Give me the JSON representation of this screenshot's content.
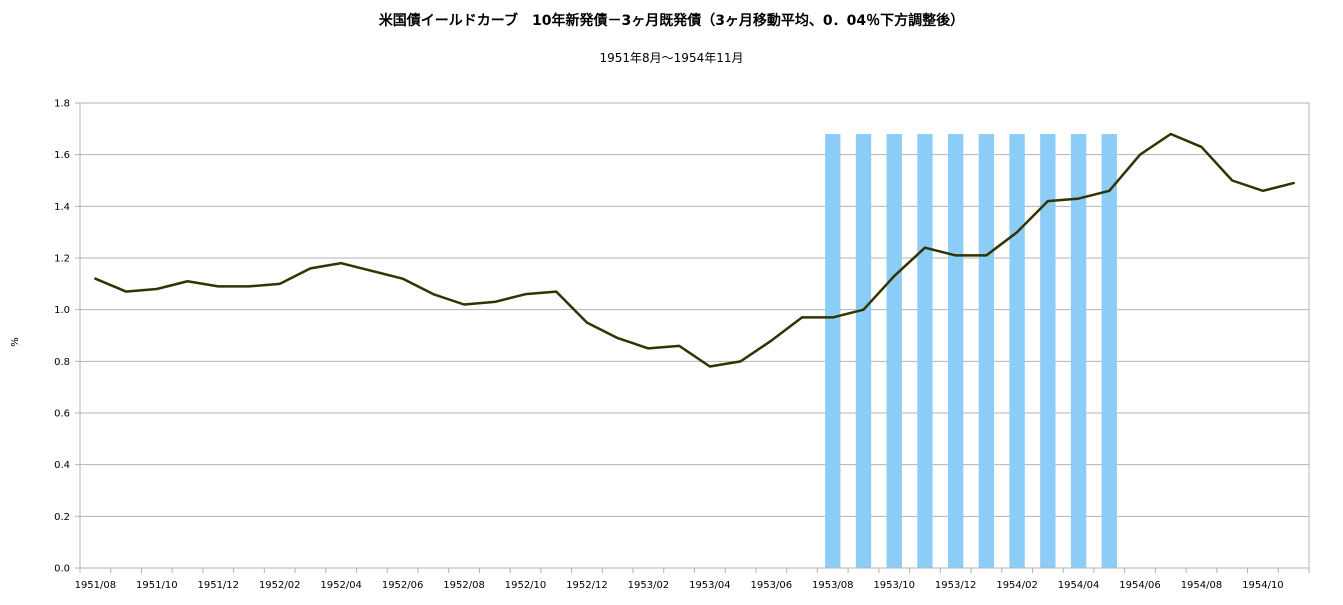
{
  "chart_data": {
    "type": "line",
    "title": "米国債イールドカーブ　10年新発債－3ヶ月既発債（3ヶ月移動平均、0．04％下方調整後）",
    "subtitle": "1951年8月～1954年11月",
    "ylabel": "%",
    "xlabel": "",
    "ylim": [
      0,
      1.8
    ],
    "yticks": [
      "0.0",
      "0.2",
      "0.4",
      "0.6",
      "0.8",
      "1.0",
      "1.2",
      "1.4",
      "1.6",
      "1.8"
    ],
    "grid": true,
    "categories": [
      "1951/08",
      "1951/09",
      "1951/10",
      "1951/11",
      "1951/12",
      "1952/01",
      "1952/02",
      "1952/03",
      "1952/04",
      "1952/05",
      "1952/06",
      "1952/07",
      "1952/08",
      "1952/09",
      "1952/10",
      "1952/11",
      "1952/12",
      "1953/01",
      "1953/02",
      "1953/03",
      "1953/04",
      "1953/05",
      "1953/06",
      "1953/07",
      "1953/08",
      "1953/09",
      "1953/10",
      "1953/11",
      "1953/12",
      "1954/01",
      "1954/02",
      "1954/03",
      "1954/04",
      "1954/05",
      "1954/06",
      "1954/07",
      "1954/08",
      "1954/09",
      "1954/10",
      "1954/11"
    ],
    "xtick_labels": [
      "1951/08",
      "1951/10",
      "1951/12",
      "1952/02",
      "1952/04",
      "1952/06",
      "1952/08",
      "1952/10",
      "1952/12",
      "1953/02",
      "1953/04",
      "1953/06",
      "1953/08",
      "1953/10",
      "1953/12",
      "1954/02",
      "1954/04",
      "1954/06",
      "1954/08",
      "1954/10"
    ],
    "series": [
      {
        "type": "line",
        "color": "#333300",
        "values": [
          1.12,
          1.07,
          1.08,
          1.11,
          1.09,
          1.09,
          1.1,
          1.16,
          1.18,
          1.15,
          1.12,
          1.06,
          1.02,
          1.03,
          1.06,
          1.07,
          0.95,
          0.89,
          0.85,
          0.86,
          0.78,
          0.8,
          0.88,
          0.97,
          0.97,
          1.0,
          1.13,
          1.24,
          1.21,
          1.21,
          1.3,
          1.42,
          1.43,
          1.46,
          1.6,
          1.68,
          1.63,
          1.5,
          1.46,
          1.49
        ]
      },
      {
        "type": "bar",
        "color": "#8ccdf7",
        "values": [
          0,
          0,
          0,
          0,
          0,
          0,
          0,
          0,
          0,
          0,
          0,
          0,
          0,
          0,
          0,
          0,
          0,
          0,
          0,
          0,
          0,
          0,
          0,
          0,
          1.68,
          1.68,
          1.68,
          1.68,
          1.68,
          1.68,
          1.68,
          1.68,
          1.68,
          1.68,
          0,
          0,
          0,
          0,
          0,
          0
        ]
      }
    ],
    "colors": {
      "line": "#333300",
      "bar": "#8ccdf7",
      "grid": "#b3b3b3",
      "axis": "#b3b3b3"
    }
  }
}
